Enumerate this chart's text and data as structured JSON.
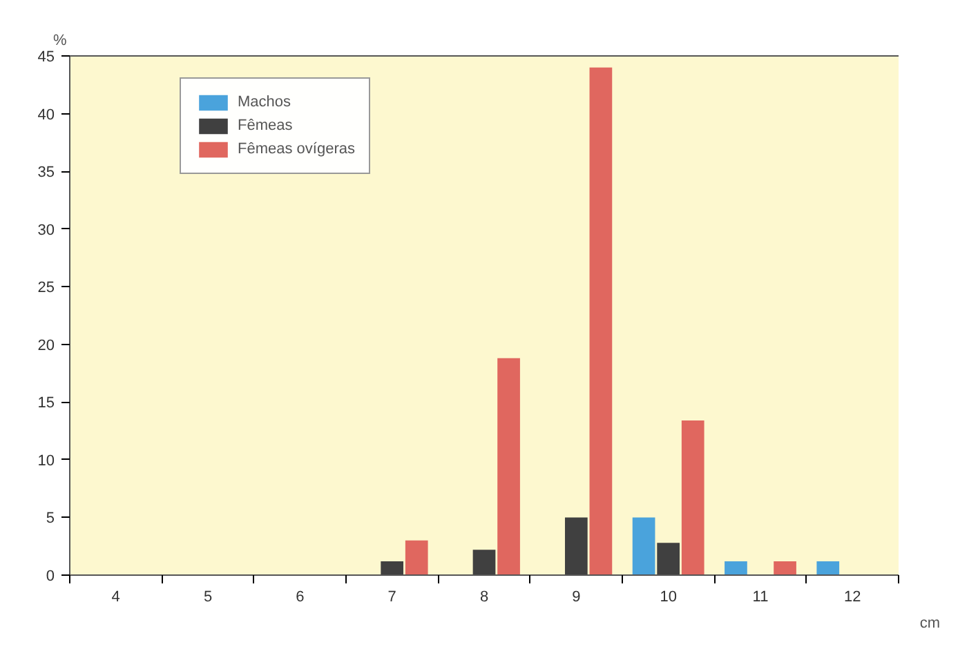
{
  "chart_data": {
    "type": "bar",
    "categories": [
      "4",
      "5",
      "6",
      "7",
      "8",
      "9",
      "10",
      "11",
      "12"
    ],
    "series": [
      {
        "name": "Machos",
        "color": "#4aa3dc",
        "values": [
          0,
          0,
          0,
          0,
          0,
          0,
          5,
          1.2,
          1.2
        ]
      },
      {
        "name": "Fêmeas",
        "color": "#404040",
        "values": [
          0,
          0,
          0,
          1.2,
          2.2,
          5,
          2.8,
          0,
          0
        ]
      },
      {
        "name": "Fêmeas ovígeras",
        "color": "#e0675f",
        "values": [
          0,
          0,
          0,
          3,
          18.8,
          44,
          13.4,
          1.2,
          0
        ]
      }
    ],
    "xlabel": "cm",
    "ylabel": "%",
    "ylim": [
      0,
      45
    ],
    "yticks": [
      0,
      5,
      10,
      15,
      20,
      25,
      30,
      35,
      40,
      45
    ],
    "grid": false,
    "legend": "top left"
  }
}
